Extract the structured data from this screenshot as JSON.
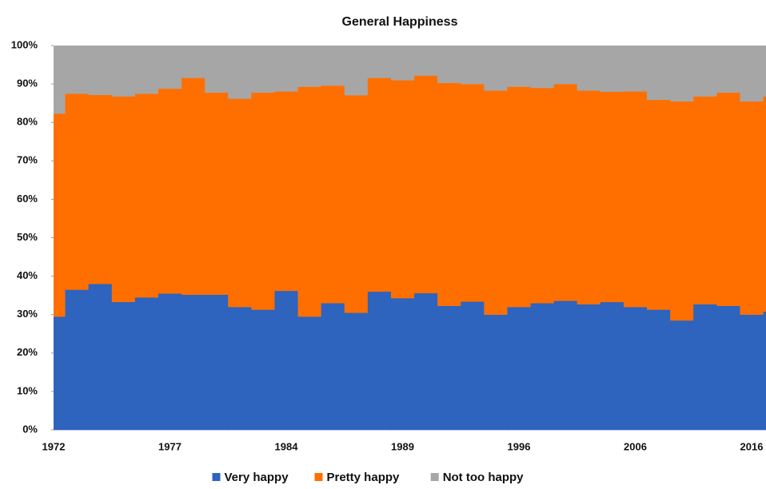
{
  "chart_data": {
    "type": "stacked_area_step",
    "title": "General Happiness",
    "categories": [
      "1972",
      null,
      null,
      null,
      null,
      "1977",
      null,
      null,
      null,
      null,
      "1984",
      null,
      null,
      null,
      null,
      "1989",
      null,
      null,
      null,
      null,
      "1996",
      null,
      null,
      null,
      null,
      "2006",
      null,
      null,
      null,
      null,
      "2016",
      null
    ],
    "series": [
      {
        "name": "Very happy",
        "color": "#2e63be",
        "values": [
          29.5,
          36.5,
          38,
          33.3,
          34.5,
          35.5,
          35.2,
          35.2,
          32,
          31.3,
          36.2,
          29.5,
          33,
          30.5,
          36,
          34.3,
          35.6,
          32.3,
          33.4,
          30,
          32,
          33,
          33.6,
          32.7,
          33.3,
          32,
          31.3,
          28.5,
          32.7,
          32.3,
          30,
          30.8
        ]
      },
      {
        "name": "Pretty happy",
        "color": "#ff6f00",
        "values": [
          52.8,
          51.0,
          49.2,
          53.5,
          53.0,
          53.3,
          56.4,
          52.6,
          54.2,
          56.5,
          51.9,
          59.8,
          56.6,
          56.6,
          55.6,
          56.7,
          56.6,
          58.0,
          56.6,
          58.3,
          57.3,
          56.0,
          56.4,
          55.6,
          54.7,
          56.1,
          54.6,
          57.0,
          54.1,
          55.5,
          55.5,
          56.0
        ]
      },
      {
        "name": "Not too happy",
        "color": "#a6a6a6",
        "values": [
          17.7,
          12.5,
          12.8,
          13.2,
          12.5,
          11.2,
          8.4,
          12.2,
          13.8,
          12.2,
          11.9,
          10.7,
          10.4,
          12.9,
          8.4,
          9.0,
          7.8,
          9.7,
          10.0,
          11.7,
          10.7,
          11.0,
          10.0,
          11.7,
          12.0,
          11.9,
          14.1,
          14.5,
          13.2,
          12.2,
          14.5,
          13.2
        ]
      }
    ],
    "ylim": [
      0,
      100
    ],
    "yticks": [
      {
        "value": 0,
        "label": "0%"
      },
      {
        "value": 10,
        "label": "10%"
      },
      {
        "value": 20,
        "label": "20%"
      },
      {
        "value": 30,
        "label": "30%"
      },
      {
        "value": 40,
        "label": "40%"
      },
      {
        "value": 50,
        "label": "50%"
      },
      {
        "value": 60,
        "label": "60%"
      },
      {
        "value": 70,
        "label": "70%"
      },
      {
        "value": 80,
        "label": "80%"
      },
      {
        "value": 90,
        "label": "90%"
      },
      {
        "value": 100,
        "label": "100%"
      }
    ],
    "legend": "bottom"
  }
}
